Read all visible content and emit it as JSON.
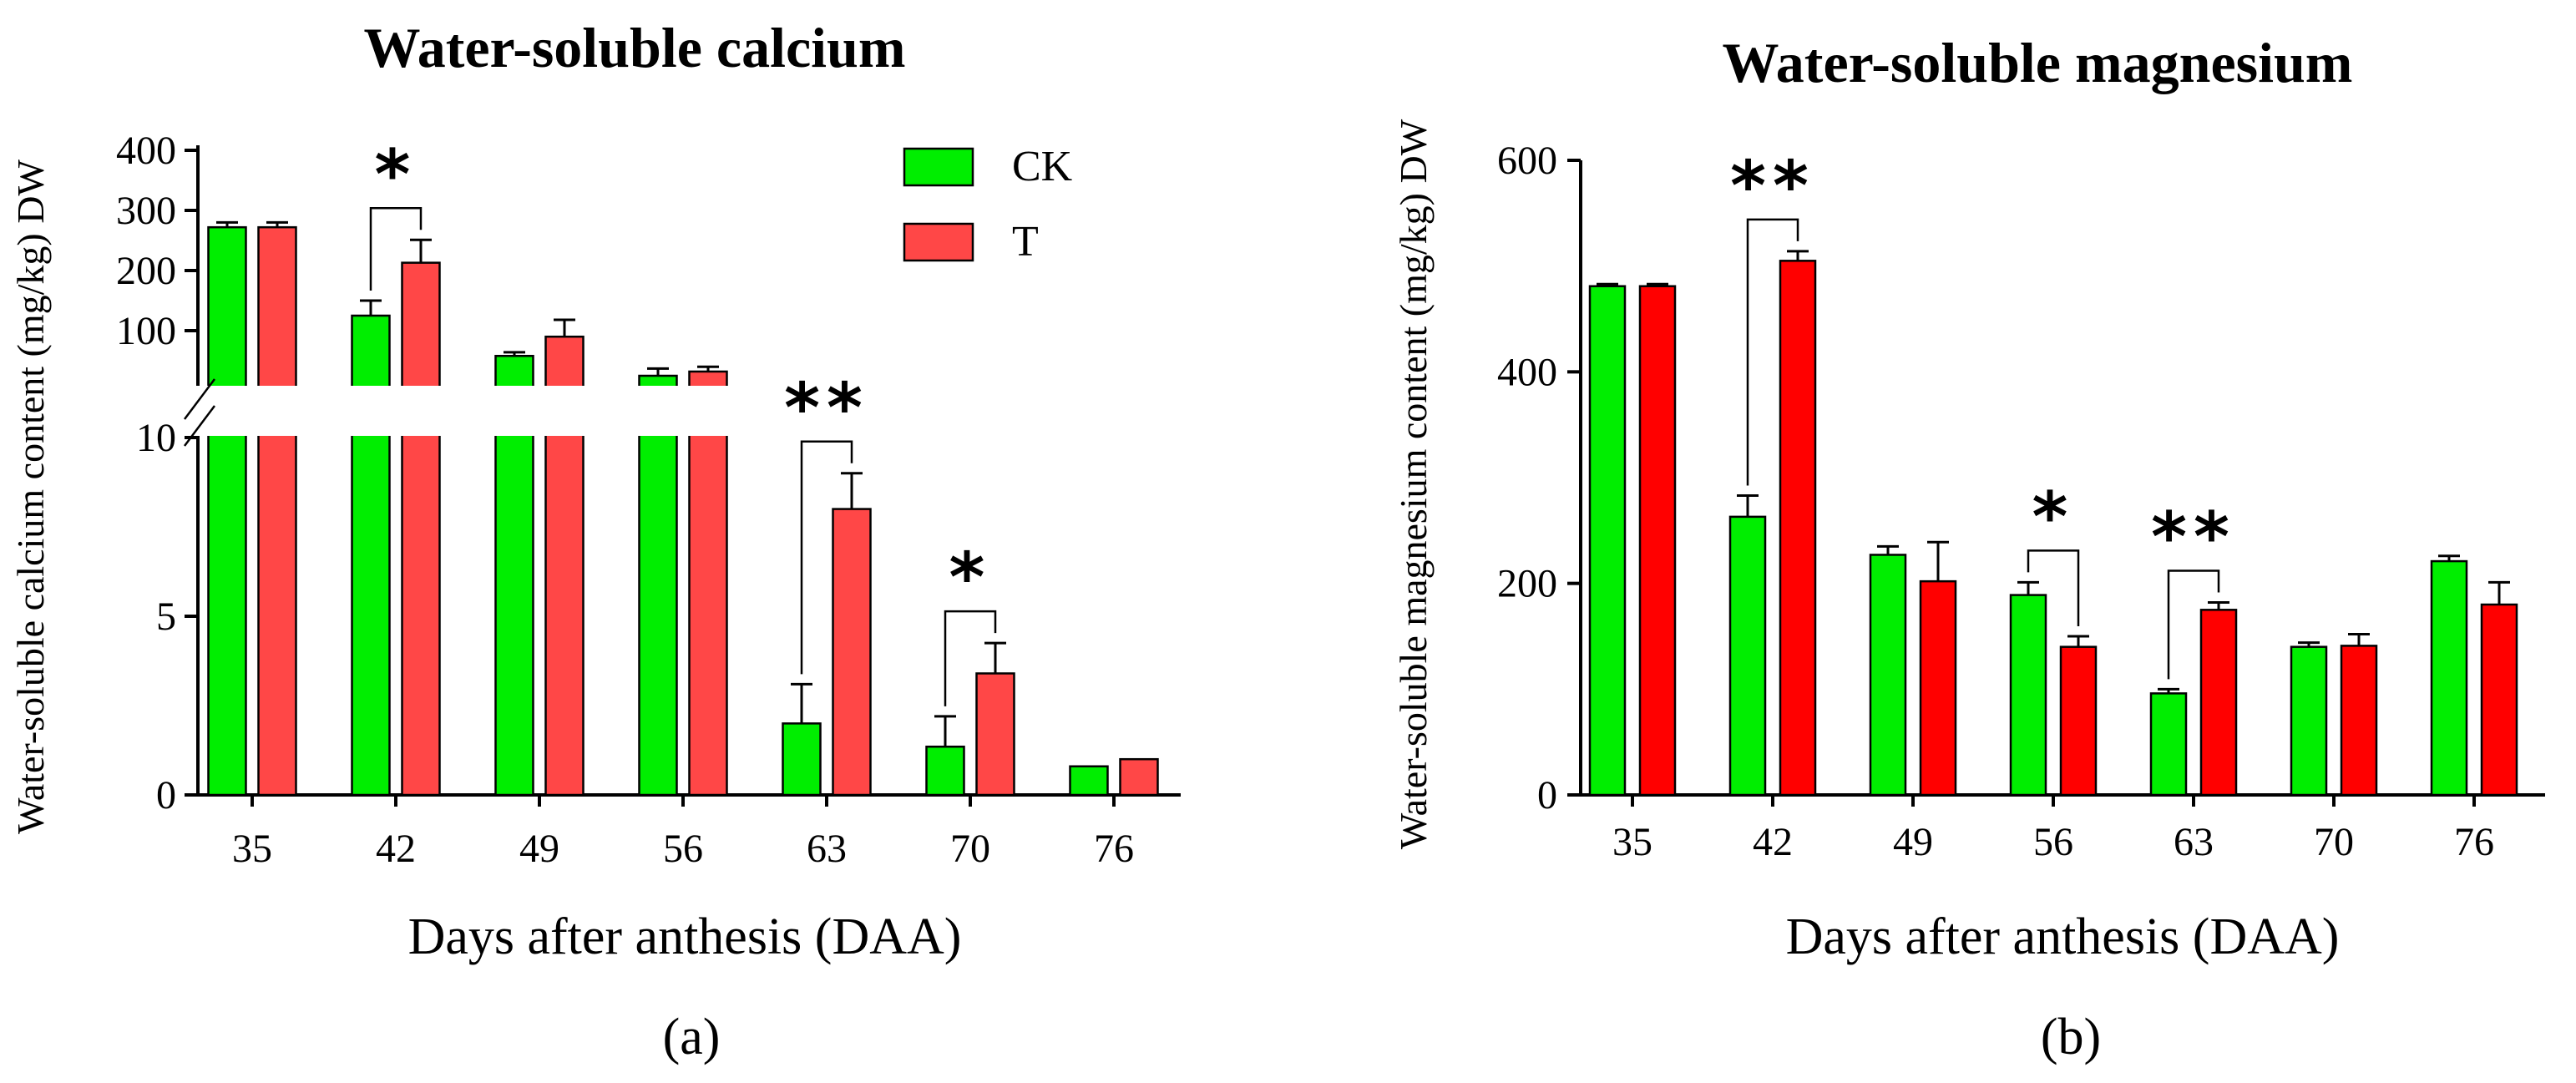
{
  "chart_data": [
    {
      "type": "bar",
      "title": "Water-soluble calcium",
      "panel_label": "(a)",
      "xlabel": "Days after anthesis (DAA)",
      "ylabel": "Water-soluble calcium content   (mg/kg)  DW",
      "categories": [
        "35",
        "42",
        "49",
        "56",
        "63",
        "70",
        "76"
      ],
      "y_axis_break": {
        "lower_range": [
          0,
          10
        ],
        "upper_range": [
          0,
          400
        ]
      },
      "lower_ticks": [
        "0",
        "5",
        "10"
      ],
      "upper_ticks": [
        "100",
        "200",
        "300",
        "400"
      ],
      "legend": {
        "position": "top-right",
        "entries": [
          "CK",
          "T"
        ]
      },
      "series": [
        {
          "name": "CK",
          "color": "#00ee00",
          "values": [
            272,
            125,
            58,
            25,
            2.0,
            1.35,
            0.8
          ],
          "errors": [
            8,
            25,
            6,
            12,
            1.1,
            0.85,
            0
          ]
        },
        {
          "name": "T",
          "color": "#ff4747",
          "values": [
            272,
            213,
            90,
            32,
            8.0,
            3.4,
            1.0
          ],
          "errors": [
            8,
            38,
            28,
            8,
            1.0,
            0.85,
            0
          ]
        }
      ],
      "significance": [
        {
          "category": "42",
          "label": "*"
        },
        {
          "category": "63",
          "label": "**"
        },
        {
          "category": "70",
          "label": "*"
        }
      ]
    },
    {
      "type": "bar",
      "title": "Water-soluble magnesium",
      "panel_label": "(b)",
      "xlabel": "Days after anthesis (DAA)",
      "ylabel": "Water-soluble  magnesium content (mg/kg)  DW",
      "categories": [
        "35",
        "42",
        "49",
        "56",
        "63",
        "70",
        "76"
      ],
      "ylim": [
        0,
        600
      ],
      "yticks": [
        "0",
        "200",
        "400",
        "600"
      ],
      "series": [
        {
          "name": "CK",
          "color": "#00ee00",
          "values": [
            481,
            263,
            227,
            189,
            96,
            140,
            221
          ],
          "errors": [
            2,
            20,
            8,
            12,
            4,
            4,
            5
          ]
        },
        {
          "name": "T",
          "color": "#ff0000",
          "values": [
            481,
            505,
            202,
            140,
            175,
            141,
            180
          ],
          "errors": [
            2,
            9,
            37,
            10,
            7,
            11,
            21
          ]
        }
      ],
      "significance": [
        {
          "category": "42",
          "label": "**"
        },
        {
          "category": "56",
          "label": "*"
        },
        {
          "category": "63",
          "label": "**"
        }
      ]
    }
  ]
}
